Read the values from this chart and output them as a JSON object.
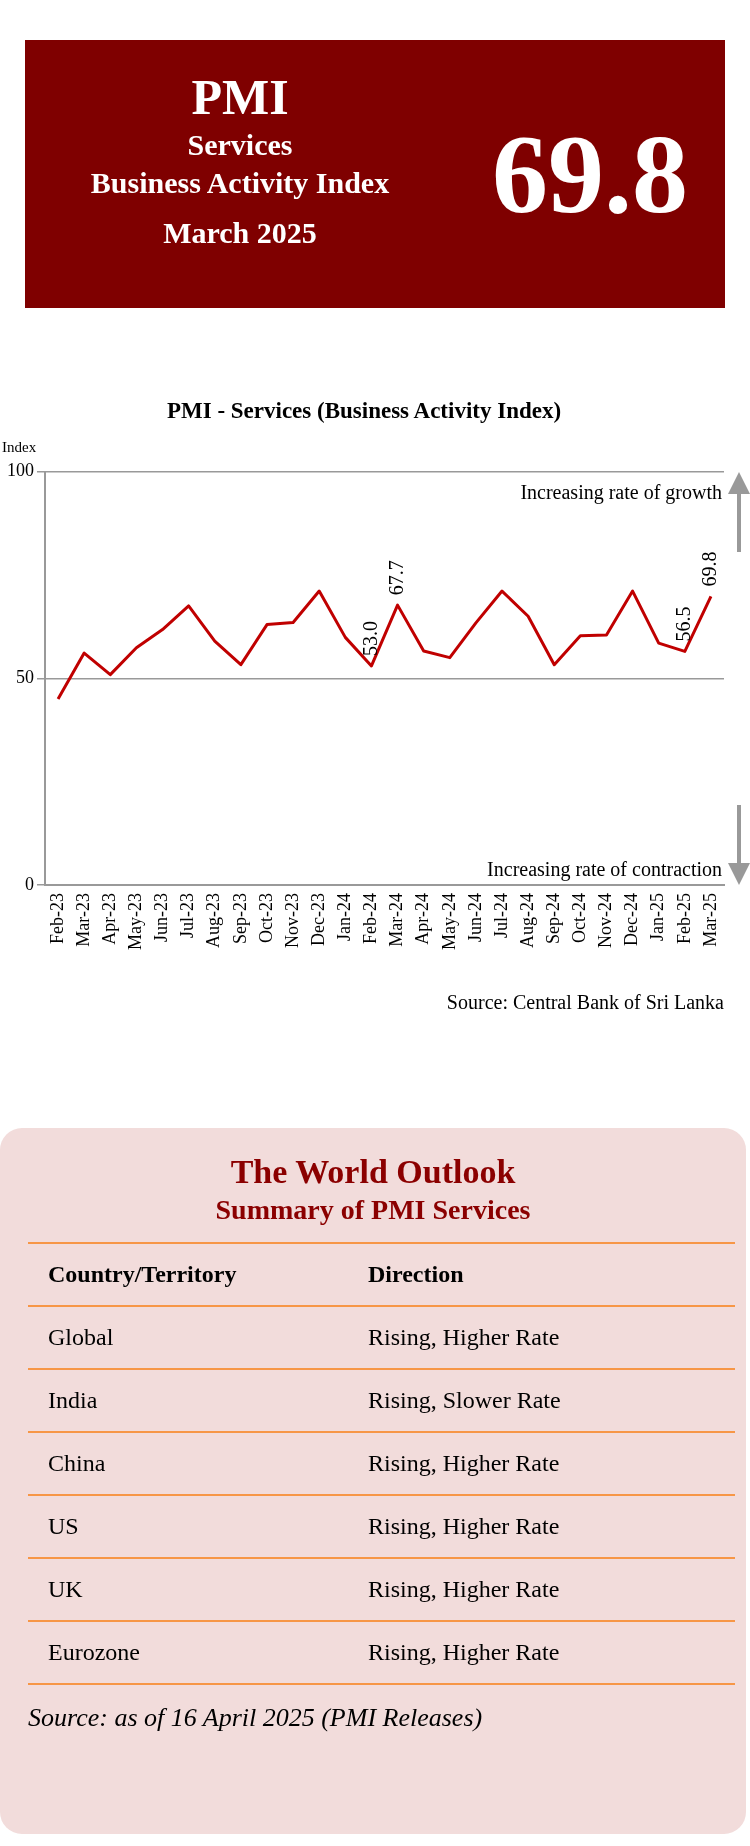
{
  "chart_data": [
    {
      "type": "other",
      "title": "PMI",
      "annotations": [
        "Services",
        "Business Activity Index",
        "March 2025",
        "69.8"
      ]
    },
    {
      "type": "line",
      "title": "PMI - Services (Business Activity Index)",
      "ylabel": "Index",
      "categories": [
        "Feb-23",
        "Mar-23",
        "Apr-23",
        "May-23",
        "Jun-23",
        "Jul-23",
        "Aug-23",
        "Sep-23",
        "Oct-23",
        "Nov-23",
        "Dec-23",
        "Jan-24",
        "Feb-24",
        "Mar-24",
        "Apr-24",
        "May-24",
        "Jun-24",
        "Jul-24",
        "Aug-24",
        "Sep-24",
        "Oct-24",
        "Nov-24",
        "Dec-24",
        "Jan-25",
        "Feb-25",
        "Mar-25"
      ],
      "series": [
        {
          "color": "#c00000",
          "values": [
            45.0,
            56.1,
            50.9,
            57.4,
            61.8,
            67.5,
            59.0,
            53.3,
            63.0,
            63.5,
            71.1,
            59.9,
            53.0,
            67.7,
            56.6,
            55.0,
            63.4,
            71.1,
            65.0,
            53.3,
            60.3,
            60.5,
            71.1,
            58.5,
            56.5,
            69.8
          ],
          "value_labels": [
            null,
            null,
            null,
            null,
            null,
            null,
            null,
            null,
            null,
            null,
            null,
            null,
            "53.0",
            "67.7",
            null,
            null,
            null,
            null,
            null,
            null,
            null,
            null,
            null,
            null,
            "56.5",
            "69.8"
          ]
        }
      ],
      "ylim": [
        0,
        100
      ],
      "yticks": [
        0,
        50,
        100
      ],
      "grid": "y",
      "legend": false,
      "marker": "none",
      "annotations": [
        "Increasing rate of growth",
        "Increasing rate of contraction",
        "Source: Central Bank of Sri Lanka"
      ]
    },
    {
      "type": "other",
      "title": "The World Outlook",
      "subtitle": "Summary of PMI Services",
      "annotations": [
        "Country/Territory",
        "Direction",
        "Global",
        "Rising, Higher Rate",
        "India",
        "Rising, Slower Rate",
        "China",
        "Rising, Higher Rate",
        "US",
        "Rising, Higher Rate",
        "UK",
        "Rising, Higher Rate",
        "Eurozone",
        "Rising, Higher Rate",
        "Source: as of 16 April 2025 (PMI Releases)"
      ]
    }
  ]
}
